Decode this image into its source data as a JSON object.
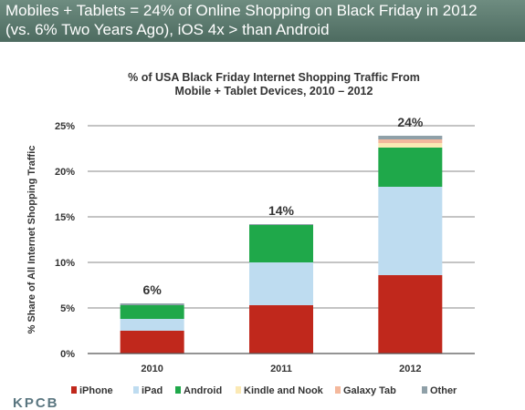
{
  "banner": {
    "line1": "Mobiles + Tablets = 24% of Online Shopping on Black Friday in 2012",
    "line2": "(vs. 6% Two Years Ago), iOS 4x > than Android"
  },
  "chart_data": {
    "type": "bar",
    "stacked": true,
    "title_line1": "% of USA Black Friday Internet Shopping Traffic From",
    "title_line2": "Mobile + Tablet Devices, 2010 – 2012",
    "xlabel": "",
    "ylabel": "% Share of All Internet Shopping Traffic",
    "ylim": [
      0,
      25
    ],
    "yticks": [
      0,
      5,
      10,
      15,
      20,
      25
    ],
    "ytick_labels": [
      "0%",
      "5%",
      "10%",
      "15%",
      "20%",
      "25%"
    ],
    "categories": [
      "2010",
      "2011",
      "2012"
    ],
    "totals_labels": [
      "6%",
      "14%",
      "24%"
    ],
    "grid": true,
    "legend_position": "bottom",
    "series": [
      {
        "name": "iPhone",
        "color": "#c0281c",
        "values": [
          2.5,
          5.3,
          8.6
        ]
      },
      {
        "name": "iPad",
        "color": "#bedcf0",
        "values": [
          1.3,
          4.7,
          9.7
        ]
      },
      {
        "name": "Android",
        "color": "#1fa84a",
        "values": [
          1.5,
          4.1,
          4.3
        ]
      },
      {
        "name": "Kindle and Nook",
        "color": "#fbe9b4",
        "values": [
          0.0,
          0.0,
          0.5
        ]
      },
      {
        "name": "Galaxy Tab",
        "color": "#f4b89c",
        "values": [
          0.0,
          0.0,
          0.4
        ]
      },
      {
        "name": "Other",
        "color": "#8fa0a8",
        "values": [
          0.2,
          0.1,
          0.4
        ]
      }
    ]
  },
  "footer": {
    "logo_text": "KPCB"
  }
}
